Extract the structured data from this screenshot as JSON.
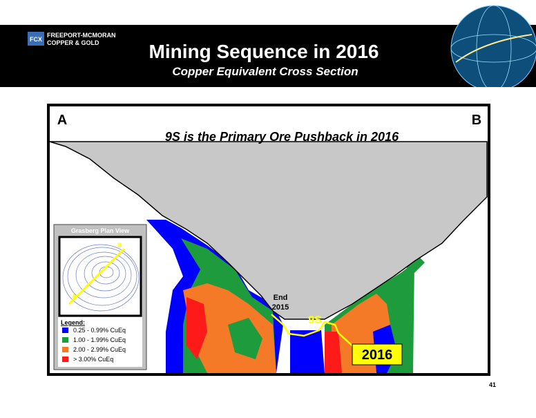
{
  "header": {
    "company_line1": "FREEPORT-MCMORAN",
    "company_line2": "COPPER & GOLD",
    "logo": "FCX",
    "title": "Mining Sequence in 2016",
    "subtitle": "Copper Equivalent Cross Section"
  },
  "section": {
    "label_left": "A",
    "label_right": "B",
    "title": "9S is the Primary Ore Pushback in 2016",
    "end_label_1": "End",
    "end_label_2": "2015",
    "pushback_label": "9S",
    "year_box": "2016"
  },
  "inset": {
    "title": "Grasberg Plan View",
    "point_a": "A",
    "point_b": "B"
  },
  "legend": {
    "title": "Legend:",
    "items": [
      {
        "label": "0.25 - 0.99%  CuEq",
        "color": "#0000ff"
      },
      {
        "label": "1.00 - 1.99%  CuEq",
        "color": "#1e9b3c"
      },
      {
        "label": "2.00 - 2.99%  CuEq",
        "color": "#f47a28"
      },
      {
        "label": "> 3.00%  CuEq",
        "color": "#ff1a1a"
      }
    ]
  },
  "page_number": "41"
}
